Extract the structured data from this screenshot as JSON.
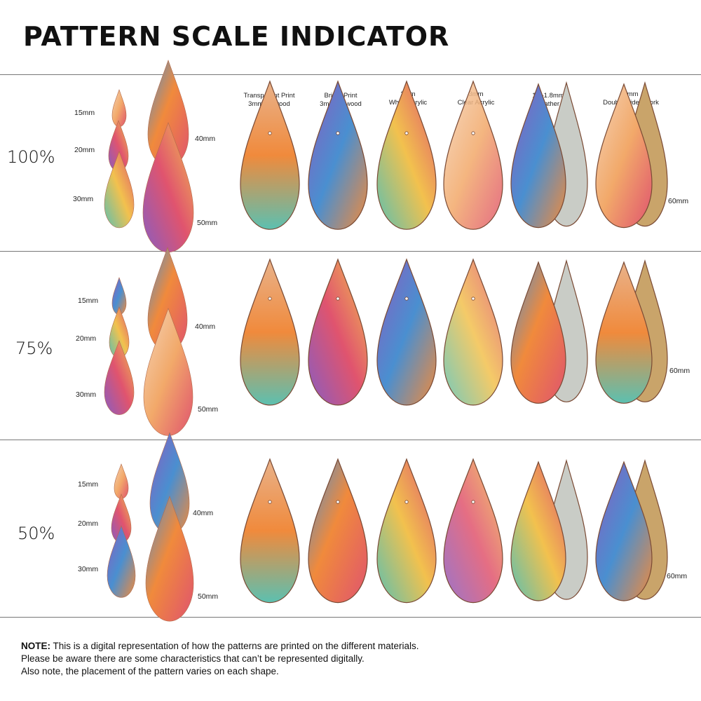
{
  "title": "PATTERN SCALE INDICATOR",
  "materials": [
    {
      "line1": "Transparent Print",
      "line2": "3mm Plywood"
    },
    {
      "line1": "Bright Print",
      "line2": "3mm Plywood"
    },
    {
      "line1": "3mm",
      "line2": "White Acrylic"
    },
    {
      "line1": "3mm",
      "line2": "Clear Acrylic"
    },
    {
      "line1": "1.6-1.8mm",
      "line2": "Leather"
    },
    {
      "line1": "2mm",
      "line2": "Double Sided Cork"
    }
  ],
  "rows": [
    {
      "scale": "100%",
      "sizes": [
        "15mm",
        "20mm",
        "30mm",
        "40mm",
        "50mm",
        "60mm"
      ]
    },
    {
      "scale": "75%",
      "sizes": [
        "15mm",
        "20mm",
        "30mm",
        "40mm",
        "50mm",
        "60mm"
      ]
    },
    {
      "scale": "50%",
      "sizes": [
        "15mm",
        "20mm",
        "30mm",
        "40mm",
        "50mm",
        "60mm"
      ]
    }
  ],
  "note": {
    "label": "NOTE:",
    "line1": " This is a digital representation of how the patterns are printed on the different materials.",
    "line2": "Please be aware there are some characteristics that can’t be represented digitally.",
    "line3": "Also note, the placement of the pattern varies on each shape."
  },
  "colors": {
    "accent_orange": "#f08a3c",
    "accent_pink": "#e0546e",
    "accent_blue": "#4a8fd0",
    "accent_purple": "#8a5cc0",
    "accent_teal": "#5cc0b0",
    "accent_yellow": "#f2c14e",
    "leather_back": "#c9ccc6",
    "cork_back": "#c9a46a",
    "divider": "#777777"
  }
}
